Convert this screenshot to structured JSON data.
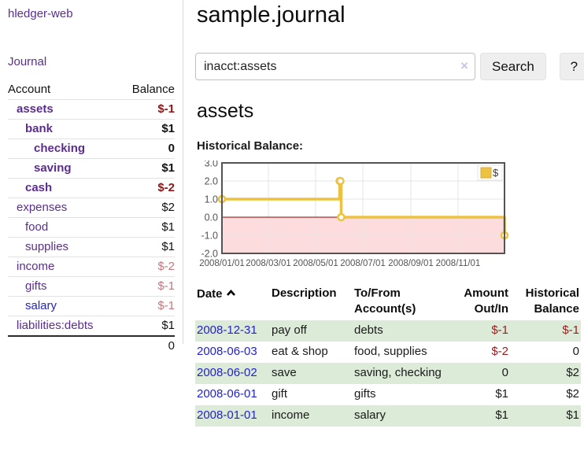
{
  "colors": {
    "accent_purple": "#5c2d91",
    "link_blue": "#2323cc",
    "negative_strong": "#8e1515",
    "negative_muted": "#c4767e",
    "negative_table": "#9b1c1c",
    "row_stripe_green": "#dcead8",
    "chart_line_gold": "#edc240",
    "chart_negative_zone": "#fcdcdc",
    "chart_zero_line": "#8b0000"
  },
  "sidebar": {
    "app_title": "hledger-web",
    "journal_label": "Journal",
    "accounts_table": {
      "col_account": "Account",
      "col_balance": "Balance",
      "rows": [
        {
          "name": "assets",
          "balance": "$-1"
        },
        {
          "name": "bank",
          "balance": "$1"
        },
        {
          "name": "checking",
          "balance": "0"
        },
        {
          "name": "saving",
          "balance": "$1"
        },
        {
          "name": "cash",
          "balance": "$-2"
        },
        {
          "name": "expenses",
          "balance": "$2"
        },
        {
          "name": "food",
          "balance": "$1"
        },
        {
          "name": "supplies",
          "balance": "$1"
        },
        {
          "name": "income",
          "balance": "$-2"
        },
        {
          "name": "gifts",
          "balance": "$-1"
        },
        {
          "name": "salary",
          "balance": "$-1"
        },
        {
          "name": "liabilities:debts",
          "balance": "$1"
        }
      ],
      "total": "0"
    }
  },
  "main": {
    "title": "sample.journal",
    "search": {
      "value": "inacct:assets",
      "clear_icon": "×",
      "button_label": "Search",
      "help_label": "?"
    },
    "account_heading": "assets",
    "chart_label": "Historical Balance:",
    "register_table": {
      "headers": {
        "date": "Date",
        "description": "Description",
        "accounts": "To/From Account(s)",
        "amount": "Amount Out/In",
        "balance": "Historical Balance"
      },
      "rows": [
        {
          "date": "2008-12-31",
          "description": "pay off",
          "accounts": "debts",
          "amount": "$-1",
          "balance": "$-1"
        },
        {
          "date": "2008-06-03",
          "description": "eat & shop",
          "accounts": "food, supplies",
          "amount": "$-2",
          "balance": "0"
        },
        {
          "date": "2008-06-02",
          "description": "save",
          "accounts": "saving, checking",
          "amount": "0",
          "balance": "$2"
        },
        {
          "date": "2008-06-01",
          "description": "gift",
          "accounts": "gifts",
          "amount": "$1",
          "balance": "$2"
        },
        {
          "date": "2008-01-01",
          "description": "income",
          "accounts": "salary",
          "amount": "$1",
          "balance": "$1"
        }
      ]
    }
  },
  "chart_data": {
    "type": "line",
    "title": "Historical Balance",
    "style": "step-after",
    "series": [
      {
        "name": "$",
        "points": [
          [
            "2008-01-01",
            1
          ],
          [
            "2008-06-01",
            2
          ],
          [
            "2008-06-02",
            2
          ],
          [
            "2008-06-03",
            0
          ],
          [
            "2008-12-31",
            -1
          ]
        ]
      }
    ],
    "xlim": [
      "2008-01-01",
      "2008-12-31"
    ],
    "ylim": [
      -2,
      3
    ],
    "x_ticks": [
      {
        "date": "2008-01-01",
        "label": "2008/01/01"
      },
      {
        "date": "2008-03-01",
        "label": "2008/03/01"
      },
      {
        "date": "2008-05-01",
        "label": "2008/05/01"
      },
      {
        "date": "2008-07-01",
        "label": "2008/07/01"
      },
      {
        "date": "2008-09-01",
        "label": "2008/09/01"
      },
      {
        "date": "2008-11-01",
        "label": "2008/11/01"
      },
      {
        "date": "2008-12-31",
        "label": ""
      }
    ],
    "y_ticks": [
      "3.0",
      "2.0",
      "1.0",
      "0.0",
      "-1.0",
      "-2.0"
    ],
    "grid": true,
    "negative_zone_shaded": true,
    "legend": {
      "label": "$",
      "position": "top-right"
    }
  }
}
